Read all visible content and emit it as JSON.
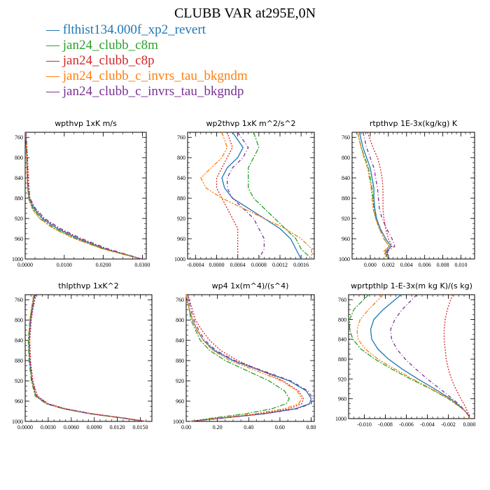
{
  "title": "CLUBB VAR at295E,0N",
  "legend": [
    {
      "label": "flthist134.000f_xp2_revert",
      "color": "#1f77b4"
    },
    {
      "label": "jan24_clubb_c8m",
      "color": "#2ca02c"
    },
    {
      "label": "jan24_clubb_c8p",
      "color": "#d62728"
    },
    {
      "label": "jan24_clubb_c_invrs_tau_bkgndm",
      "color": "#ff7f0e"
    },
    {
      "label": "jan24_clubb_c_invrs_tau_bkgndp",
      "color": "#7b3294"
    }
  ],
  "chart_data": [
    {
      "type": "line",
      "title": "wpthvp  1xK m/s",
      "xlim": [
        0,
        0.031
      ],
      "ylim": [
        1000,
        750
      ],
      "xticks": [
        0,
        0.01,
        0.02,
        0.03
      ],
      "xtick_labels": [
        "0.0000",
        "0.0100",
        "0.0200",
        "0.0300"
      ],
      "yticks": [
        760,
        800,
        840,
        880,
        920,
        960,
        1000
      ],
      "y": [
        750,
        800,
        850,
        880,
        900,
        920,
        940,
        960,
        980,
        1000
      ],
      "series": [
        {
          "name": "flthist134.000f_xp2_revert",
          "x": [
            0.0001,
            0.0004,
            0.0006,
            0.001,
            0.0022,
            0.0044,
            0.0082,
            0.0136,
            0.0204,
            0.0298
          ]
        },
        {
          "name": "jan24_clubb_c8m",
          "x": [
            0.0001,
            0.0004,
            0.0006,
            0.0009,
            0.0019,
            0.0039,
            0.0076,
            0.013,
            0.02,
            0.0298
          ]
        },
        {
          "name": "jan24_clubb_c8p",
          "x": [
            0.0002,
            0.0006,
            0.0009,
            0.0012,
            0.0025,
            0.0048,
            0.0087,
            0.0141,
            0.0208,
            0.0298
          ]
        },
        {
          "name": "jan24_clubb_c_invrs_tau_bkgndm",
          "x": [
            0.0001,
            0.0004,
            0.0005,
            0.0008,
            0.0017,
            0.0036,
            0.0072,
            0.0126,
            0.0197,
            0.0296
          ]
        },
        {
          "name": "jan24_clubb_c_invrs_tau_bkgndp",
          "x": [
            0.0002,
            0.0005,
            0.0007,
            0.0012,
            0.0026,
            0.005,
            0.009,
            0.0145,
            0.0212,
            0.0298
          ]
        }
      ]
    },
    {
      "type": "line",
      "title": "wp2thvp  1xK m^2/s^2",
      "xlim": [
        -0.00055,
        0.00185
      ],
      "ylim": [
        1000,
        750
      ],
      "xticks": [
        -0.0004,
        0,
        0.0004,
        0.0008,
        0.0012,
        0.0016
      ],
      "xtick_labels": [
        "-0.0004",
        "0.0000",
        "0.0004",
        "0.0008",
        "0.0012",
        "0.0016"
      ],
      "yticks": [
        760,
        800,
        840,
        880,
        920,
        960,
        1000
      ],
      "y": [
        750,
        780,
        800,
        820,
        840,
        860,
        880,
        900,
        920,
        940,
        960,
        980,
        1000
      ],
      "series": [
        {
          "name": "flthist134.000f_xp2_revert",
          "x": [
            0.0003,
            0.0005,
            0.0004,
            0.0002,
            0.0001,
            0.00015,
            0.0003,
            0.0006,
            0.0009,
            0.0012,
            0.0014,
            0.0015,
            0.0016
          ]
        },
        {
          "name": "jan24_clubb_c8m",
          "x": [
            0.0007,
            0.0008,
            0.0007,
            0.0006,
            0.0006,
            0.0006,
            0.0007,
            0.0009,
            0.0011,
            0.0013,
            0.0015,
            0.0016,
            0.0018
          ]
        },
        {
          "name": "jan24_clubb_c8p",
          "x": [
            0.0002,
            0.0003,
            0.0002,
            0.0001,
            0.0,
            0.0,
            0.0001,
            0.0002,
            0.0003,
            0.0004,
            0.0004,
            0.0004,
            0.0004
          ]
        },
        {
          "name": "jan24_clubb_c_invrs_tau_bkgndm",
          "x": [
            0.0001,
            0.0002,
            0.0001,
            -0.0001,
            -0.0003,
            -0.0002,
            0.0001,
            0.0005,
            0.0009,
            0.0013,
            0.0016,
            0.0018,
            0.0018
          ]
        },
        {
          "name": "jan24_clubb_c_invrs_tau_bkgndp",
          "x": [
            0.0004,
            0.0006,
            0.0005,
            0.0003,
            0.0002,
            0.0002,
            0.0003,
            0.0005,
            0.0007,
            0.0008,
            0.0009,
            0.0009,
            0.0008
          ]
        }
      ]
    },
    {
      "type": "line",
      "title": "rtpthvp  1E-3x(kg/kg) K",
      "xlim": [
        -0.002,
        0.0115
      ],
      "ylim": [
        1000,
        750
      ],
      "xticks": [
        0,
        0.002,
        0.004,
        0.006,
        0.008,
        0.01
      ],
      "xtick_labels": [
        "0.000",
        "0.002",
        "0.004",
        "0.006",
        "0.008",
        "0.010"
      ],
      "yticks": [
        760,
        800,
        840,
        880,
        920,
        960,
        1000
      ],
      "y": [
        750,
        780,
        800,
        820,
        840,
        860,
        880,
        900,
        920,
        940,
        960,
        975,
        985,
        1000
      ],
      "series": [
        {
          "name": "flthist134.000f_xp2_revert",
          "x": [
            -0.0012,
            -0.0008,
            -0.0004,
            0.0,
            0.0002,
            0.0004,
            0.0004,
            0.0005,
            0.0007,
            0.0011,
            0.0017,
            0.0023,
            0.0018,
            0.0021
          ]
        },
        {
          "name": "jan24_clubb_c8m",
          "x": [
            -0.0014,
            -0.001,
            -0.0006,
            -0.0002,
            0.0,
            0.0002,
            0.0003,
            0.0004,
            0.0006,
            0.001,
            0.0015,
            0.0021,
            0.0016,
            0.0019
          ]
        },
        {
          "name": "jan24_clubb_c8p",
          "x": [
            -0.0003,
            0.0003,
            0.0008,
            0.0011,
            0.0013,
            0.0014,
            0.0014,
            0.0014,
            0.0015,
            0.0017,
            0.002,
            0.0024,
            0.0017,
            0.002
          ]
        },
        {
          "name": "jan24_clubb_c_invrs_tau_bkgndm",
          "x": [
            -0.0014,
            -0.001,
            -0.0007,
            -0.0003,
            -0.0001,
            0.0001,
            0.0002,
            0.0003,
            0.0006,
            0.001,
            0.0015,
            0.0021,
            0.0015,
            0.0018
          ]
        },
        {
          "name": "jan24_clubb_c_invrs_tau_bkgndp",
          "x": [
            -0.0008,
            -0.0004,
            0.0,
            0.0004,
            0.0006,
            0.0008,
            0.0009,
            0.001,
            0.0013,
            0.0018,
            0.0024,
            0.0027,
            0.0019,
            0.0021
          ]
        }
      ]
    },
    {
      "type": "line",
      "title": "thlpthvp  1xK^2",
      "xlim": [
        0,
        0.0165
      ],
      "ylim": [
        1000,
        750
      ],
      "xticks": [
        0,
        0.003,
        0.006,
        0.009,
        0.012,
        0.015
      ],
      "xtick_labels": [
        "0.0000",
        "0.0030",
        "0.0060",
        "0.0090",
        "0.0120",
        "0.0150"
      ],
      "yticks": [
        760,
        800,
        840,
        880,
        920,
        960,
        1000
      ],
      "y": [
        750,
        780,
        800,
        840,
        880,
        920,
        950,
        965,
        975,
        985,
        993,
        1000
      ],
      "series": [
        {
          "name": "flthist134.000f_xp2_revert",
          "x": [
            0.0012,
            0.0009,
            0.0007,
            0.0005,
            0.0006,
            0.0009,
            0.0014,
            0.0028,
            0.005,
            0.0085,
            0.0125,
            0.0157
          ]
        },
        {
          "name": "jan24_clubb_c8m",
          "x": [
            0.0011,
            0.0008,
            0.0006,
            0.0004,
            0.0005,
            0.0008,
            0.0013,
            0.0027,
            0.0049,
            0.0084,
            0.0124,
            0.0156
          ]
        },
        {
          "name": "jan24_clubb_c8p",
          "x": [
            0.0014,
            0.001,
            0.0008,
            0.0006,
            0.0007,
            0.001,
            0.0016,
            0.003,
            0.0053,
            0.0088,
            0.0127,
            0.0158
          ]
        },
        {
          "name": "jan24_clubb_c_invrs_tau_bkgndm",
          "x": [
            0.0011,
            0.0008,
            0.0006,
            0.0005,
            0.0006,
            0.0009,
            0.0014,
            0.0028,
            0.005,
            0.0086,
            0.0126,
            0.0157
          ]
        },
        {
          "name": "jan24_clubb_c_invrs_tau_bkgndp",
          "x": [
            0.0013,
            0.0009,
            0.0007,
            0.0005,
            0.0006,
            0.0009,
            0.0015,
            0.0029,
            0.0051,
            0.0086,
            0.0126,
            0.0157
          ]
        }
      ]
    },
    {
      "type": "line",
      "title": "wp4  1x(m^4)/(s^4)",
      "xlim": [
        0,
        0.82
      ],
      "ylim": [
        1000,
        750
      ],
      "xticks": [
        0,
        0.2,
        0.4,
        0.6,
        0.8
      ],
      "xtick_labels": [
        "0.00",
        "0.20",
        "0.40",
        "0.60",
        "0.80"
      ],
      "yticks": [
        760,
        800,
        840,
        880,
        920,
        960,
        1000
      ],
      "y": [
        750,
        780,
        800,
        820,
        840,
        860,
        880,
        900,
        920,
        940,
        955,
        965,
        975,
        985,
        993,
        1000
      ],
      "series": [
        {
          "name": "flthist134.000f_xp2_revert",
          "x": [
            0.0,
            0.02,
            0.04,
            0.07,
            0.11,
            0.18,
            0.3,
            0.48,
            0.66,
            0.77,
            0.8,
            0.79,
            0.7,
            0.5,
            0.25,
            0.02
          ]
        },
        {
          "name": "jan24_clubb_c8m",
          "x": [
            0.0,
            0.02,
            0.03,
            0.06,
            0.09,
            0.15,
            0.25,
            0.39,
            0.53,
            0.63,
            0.66,
            0.64,
            0.55,
            0.38,
            0.18,
            0.02
          ]
        },
        {
          "name": "jan24_clubb_c8p",
          "x": [
            0.01,
            0.04,
            0.06,
            0.1,
            0.15,
            0.22,
            0.33,
            0.48,
            0.62,
            0.72,
            0.75,
            0.74,
            0.66,
            0.47,
            0.24,
            0.02
          ]
        },
        {
          "name": "jan24_clubb_c_invrs_tau_bkgndm",
          "x": [
            0.0,
            0.02,
            0.04,
            0.07,
            0.11,
            0.17,
            0.28,
            0.45,
            0.61,
            0.71,
            0.74,
            0.72,
            0.63,
            0.44,
            0.22,
            0.02
          ]
        },
        {
          "name": "jan24_clubb_c_invrs_tau_bkgndp",
          "x": [
            0.01,
            0.03,
            0.05,
            0.08,
            0.12,
            0.19,
            0.31,
            0.49,
            0.67,
            0.78,
            0.81,
            0.8,
            0.71,
            0.5,
            0.25,
            0.02
          ]
        }
      ]
    },
    {
      "type": "line",
      "title": "wprtpthlp  1-E-3x(m kg K)/(s kg)",
      "xlim": [
        -0.0115,
        0.0005
      ],
      "ylim": [
        1000,
        750
      ],
      "xticks": [
        -0.01,
        -0.008,
        -0.006,
        -0.004,
        -0.002,
        0.0
      ],
      "xtick_labels": [
        "-0.010",
        "-0.008",
        "-0.006",
        "-0.004",
        "-0.002",
        "0.000"
      ],
      "yticks": [
        760,
        800,
        840,
        880,
        920,
        960,
        1000
      ],
      "y": [
        750,
        780,
        800,
        820,
        840,
        860,
        880,
        900,
        920,
        940,
        960,
        975,
        985,
        993,
        1000
      ],
      "series": [
        {
          "name": "flthist134.000f_xp2_revert",
          "x": [
            -0.0065,
            -0.0082,
            -0.0091,
            -0.0094,
            -0.0093,
            -0.0087,
            -0.0077,
            -0.0064,
            -0.0049,
            -0.0033,
            -0.0018,
            -0.0009,
            -0.0004,
            -0.0001,
            0.0
          ]
        },
        {
          "name": "jan24_clubb_c8m",
          "x": [
            -0.0096,
            -0.011,
            -0.0114,
            -0.0114,
            -0.0111,
            -0.0103,
            -0.009,
            -0.0074,
            -0.0056,
            -0.0037,
            -0.002,
            -0.001,
            -0.0004,
            -0.0001,
            0.0
          ]
        },
        {
          "name": "jan24_clubb_c8p",
          "x": [
            -0.0016,
            -0.0021,
            -0.0023,
            -0.0024,
            -0.0024,
            -0.0023,
            -0.0022,
            -0.002,
            -0.0017,
            -0.0013,
            -0.0008,
            -0.0004,
            -0.0002,
            0.0,
            0.0
          ]
        },
        {
          "name": "jan24_clubb_c_invrs_tau_bkgndm",
          "x": [
            -0.0082,
            -0.0096,
            -0.0104,
            -0.0107,
            -0.0106,
            -0.0099,
            -0.0087,
            -0.0071,
            -0.0054,
            -0.0036,
            -0.0019,
            -0.001,
            -0.0004,
            -0.0001,
            0.0
          ]
        },
        {
          "name": "jan24_clubb_c_invrs_tau_bkgndp",
          "x": [
            -0.005,
            -0.0064,
            -0.0071,
            -0.0075,
            -0.0074,
            -0.0069,
            -0.0061,
            -0.0051,
            -0.004,
            -0.0028,
            -0.0016,
            -0.0008,
            -0.0004,
            -0.0001,
            0.0
          ]
        }
      ]
    }
  ]
}
